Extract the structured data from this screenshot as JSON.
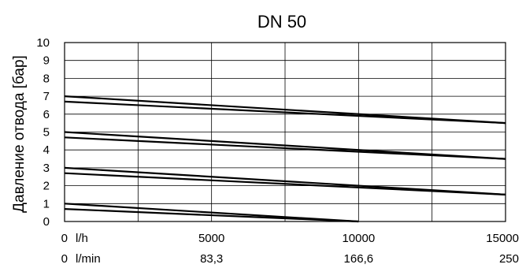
{
  "chart_data": {
    "type": "line",
    "title": "DN 50",
    "ylabel": "Давление отвода [бар]",
    "xlim": [
      0,
      15000
    ],
    "ylim": [
      0,
      10
    ],
    "grid": true,
    "y_ticks": [
      "0",
      "1",
      "2",
      "3",
      "4",
      "5",
      "6",
      "7",
      "8",
      "9",
      "10"
    ],
    "x_axis_rows": [
      {
        "unit": "l/h",
        "ticks": [
          "0",
          "5000",
          "10000",
          "15000"
        ]
      },
      {
        "unit": "l/min",
        "ticks": [
          "0",
          "83,3",
          "166,6",
          "250"
        ]
      }
    ],
    "series": [
      {
        "x": [
          0,
          15000
        ],
        "y": [
          7.0,
          5.5
        ]
      },
      {
        "x": [
          0,
          15000
        ],
        "y": [
          6.7,
          5.5
        ]
      },
      {
        "x": [
          0,
          15000
        ],
        "y": [
          5.0,
          3.5
        ]
      },
      {
        "x": [
          0,
          15000
        ],
        "y": [
          4.7,
          3.5
        ]
      },
      {
        "x": [
          0,
          15000
        ],
        "y": [
          3.0,
          1.5
        ]
      },
      {
        "x": [
          0,
          15000
        ],
        "y": [
          2.7,
          1.5
        ]
      },
      {
        "x": [
          0,
          10000
        ],
        "y": [
          1.0,
          0.0
        ]
      },
      {
        "x": [
          0,
          10000
        ],
        "y": [
          0.7,
          0.0
        ]
      }
    ]
  }
}
